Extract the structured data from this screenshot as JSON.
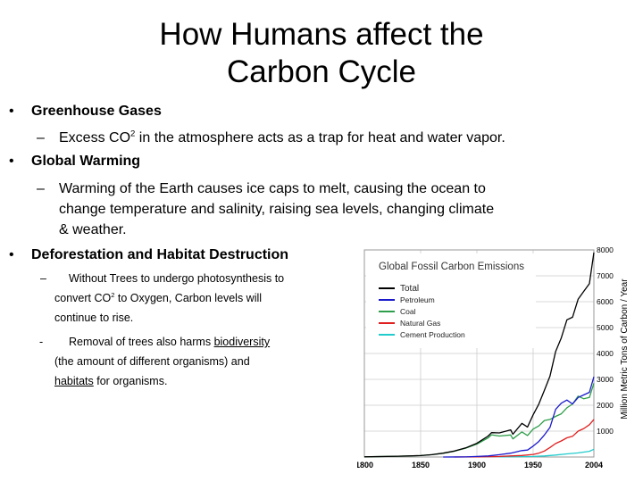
{
  "slide": {
    "title_line1": "How Humans affect the",
    "title_line2": "Carbon Cycle",
    "bullet1": {
      "heading": "Greenhouse Gases",
      "sub_prefix": "Excess CO",
      "sub_sup": "2",
      "sub_suffix": " in the atmosphere acts as a trap for heat and water vapor."
    },
    "bullet2": {
      "heading": "Global Warming",
      "sub_line1": "Warming of the Earth causes ice caps to melt, causing the ocean to",
      "sub_line2": "change temperature and salinity, raising sea levels, changing climate",
      "sub_line3": "& weather."
    },
    "bullet3": {
      "heading": "Deforestation and Habitat Destruction",
      "sub1_line1": "Without Trees to undergo photosynthesis to",
      "sub1_line2_prefix": "convert CO",
      "sub1_line2_sup": "2",
      "sub1_line2_suffix": "  to Oxygen, Carbon levels will",
      "sub1_line3": "continue to rise.",
      "sub2_line1_prefix": "Removal of trees also harms ",
      "sub2_line1_link": "biodiversity",
      "sub2_line2": "(the amount of different organisms) and",
      "sub2_line3_link": "habitats",
      "sub2_line3_suffix": " for organisms."
    },
    "markers": {
      "bullet": "•",
      "dash": "–",
      "hyphen": "-"
    }
  },
  "chart_data": {
    "type": "line",
    "title": "Global Fossil Carbon Emissions",
    "ylabel": "Million Metric Tons of Carbon / Year",
    "xlim": [
      1800,
      2004
    ],
    "ylim": [
      0,
      8000
    ],
    "x_ticks": [
      "1800",
      "1850",
      "1900",
      "1950",
      "2004"
    ],
    "y_ticks": [
      "1000",
      "2000",
      "3000",
      "4000",
      "5000",
      "6000",
      "7000",
      "8000"
    ],
    "legend_position": "top-left",
    "grid": true,
    "series": [
      {
        "name": "Total",
        "color": "#000000",
        "x": [
          1800,
          1830,
          1850,
          1860,
          1870,
          1880,
          1890,
          1900,
          1910,
          1913,
          1920,
          1930,
          1932,
          1940,
          1945,
          1950,
          1955,
          1960,
          1965,
          1970,
          1975,
          1980,
          1985,
          1990,
          1995,
          2000,
          2004
        ],
        "values": [
          8,
          30,
          54,
          90,
          150,
          230,
          350,
          530,
          810,
          940,
          930,
          1050,
          880,
          1300,
          1160,
          1630,
          2040,
          2580,
          3130,
          4080,
          4600,
          5300,
          5400,
          6100,
          6400,
          6700,
          7900
        ]
      },
      {
        "name": "Petroleum",
        "color": "#1a1acc",
        "x": [
          1870,
          1890,
          1900,
          1910,
          1920,
          1930,
          1940,
          1945,
          1950,
          1955,
          1960,
          1965,
          1970,
          1975,
          1980,
          1985,
          1990,
          1995,
          2000,
          2004
        ],
        "values": [
          0,
          5,
          20,
          40,
          90,
          150,
          250,
          270,
          420,
          600,
          850,
          1150,
          1840,
          2080,
          2200,
          2050,
          2300,
          2400,
          2500,
          3100
        ]
      },
      {
        "name": "Coal",
        "color": "#2e9e4a",
        "x": [
          1800,
          1830,
          1850,
          1860,
          1870,
          1880,
          1890,
          1900,
          1910,
          1913,
          1920,
          1930,
          1932,
          1940,
          1945,
          1950,
          1955,
          1960,
          1965,
          1970,
          1975,
          1980,
          1985,
          1990,
          1995,
          2000,
          2004
        ],
        "values": [
          8,
          30,
          54,
          90,
          145,
          225,
          340,
          500,
          740,
          860,
          810,
          850,
          700,
          970,
          830,
          1080,
          1200,
          1410,
          1450,
          1570,
          1670,
          1900,
          2050,
          2350,
          2250,
          2300,
          2850
        ]
      },
      {
        "name": "Natural Gas",
        "color": "#e02020",
        "x": [
          1880,
          1900,
          1920,
          1930,
          1940,
          1950,
          1955,
          1960,
          1965,
          1970,
          1975,
          1980,
          1985,
          1990,
          1995,
          2000,
          2004
        ],
        "values": [
          0,
          5,
          20,
          40,
          60,
          100,
          150,
          230,
          370,
          520,
          620,
          740,
          800,
          1000,
          1100,
          1250,
          1450
        ]
      },
      {
        "name": "Cement Production",
        "color": "#22cccc",
        "x": [
          1920,
          1930,
          1940,
          1950,
          1960,
          1970,
          1980,
          1990,
          2000,
          2004
        ],
        "values": [
          5,
          10,
          15,
          20,
          40,
          75,
          120,
          160,
          220,
          300
        ]
      }
    ]
  }
}
